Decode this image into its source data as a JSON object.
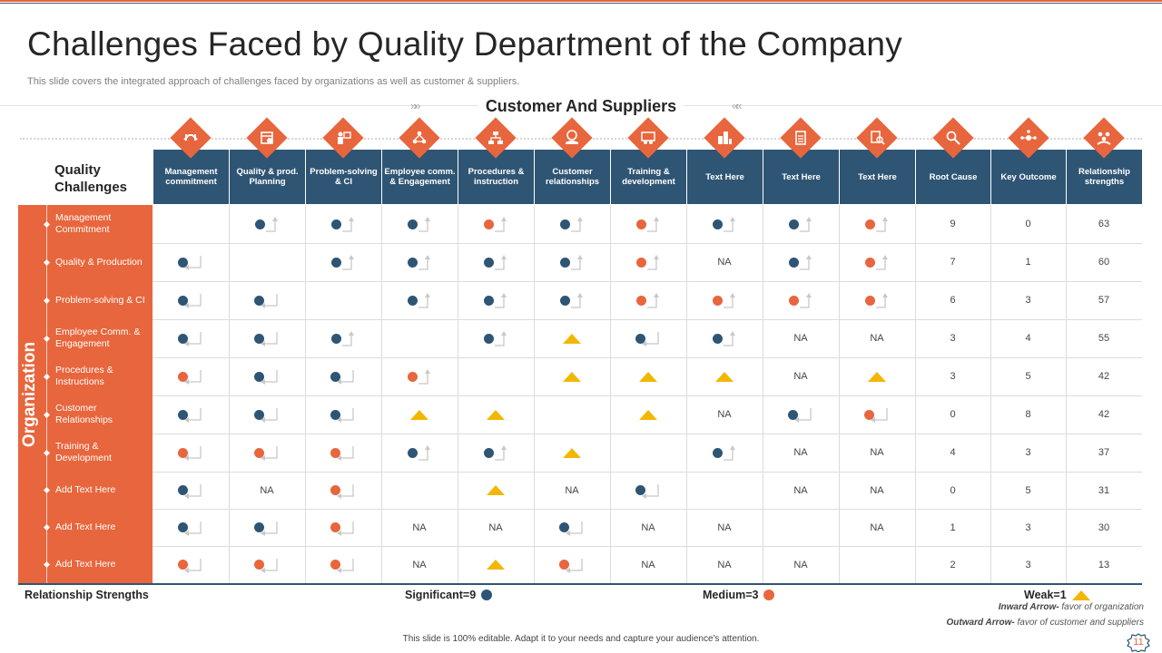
{
  "title": "Challenges Faced by Quality Department of the Company",
  "subtitle": "This slide covers the integrated approach of challenges faced by organizations as well as customer & suppliers.",
  "customer_title": "Customer And Suppliers",
  "quality_challenges": "Quality Challenges",
  "organization_label": "Organization",
  "colors": {
    "orange": "#e8663d",
    "navy": "#2f5574",
    "yellow": "#f2b705"
  },
  "columns": [
    {
      "label": "Management commitment",
      "icon": "handshake-icon"
    },
    {
      "label": "Quality & prod. Planning",
      "icon": "calendar-plan-icon"
    },
    {
      "label": "Problem-solving & CI",
      "icon": "presenter-icon"
    },
    {
      "label": "Employee comm. & Engagement",
      "icon": "team-network-icon"
    },
    {
      "label": "Procedures & instruction",
      "icon": "flowchart-icon"
    },
    {
      "label": "Customer relationships",
      "icon": "customer-hand-icon"
    },
    {
      "label": "Training & development",
      "icon": "training-board-icon"
    },
    {
      "label": "Text Here",
      "icon": "city-icon"
    },
    {
      "label": "Text Here",
      "icon": "clipboard-icon"
    },
    {
      "label": "Text Here",
      "icon": "checklist-search-icon"
    },
    {
      "label": "Root Cause",
      "icon": "analysis-icon"
    },
    {
      "label": "Key Outcome",
      "icon": "key-outcome-icon"
    },
    {
      "label": "Relationship strengths",
      "icon": "people-group-icon"
    }
  ],
  "rows": [
    {
      "label": "Management Commitment",
      "cells": [
        "",
        "B>",
        "B>",
        "B>",
        "O>",
        "B>",
        "O>",
        "B>",
        "B>",
        "O>",
        "9",
        "0",
        "63"
      ]
    },
    {
      "label": "Quality & Production",
      "cells": [
        "B<",
        "",
        "B>",
        "B>",
        "B>",
        "B>",
        "O>",
        "NA",
        "B>",
        "O>",
        "7",
        "1",
        "60"
      ]
    },
    {
      "label": "Problem-solving & CI",
      "cells": [
        "B<",
        "B<",
        "",
        "B>",
        "B>",
        "B>",
        "O>",
        "O>",
        "O>",
        "O>",
        "6",
        "3",
        "57"
      ]
    },
    {
      "label": "Employee Comm. & Engagement",
      "cells": [
        "B<",
        "B<",
        "B>",
        "",
        "B>",
        "T",
        "B<",
        "B>",
        "NA",
        "NA",
        "3",
        "4",
        "55"
      ]
    },
    {
      "label": "Procedures & Instructions",
      "cells": [
        "O<",
        "B<",
        "B<",
        "O>",
        "",
        "T",
        "T",
        "T",
        "NA",
        "T",
        "3",
        "5",
        "42"
      ]
    },
    {
      "label": "Customer Relationships",
      "cells": [
        "B<",
        "B<",
        "B<",
        "T",
        "T",
        "",
        "T",
        "NA",
        "B<",
        "O<",
        "0",
        "8",
        "42"
      ]
    },
    {
      "label": "Training & Development",
      "cells": [
        "O<",
        "O<",
        "O<",
        "B>",
        "B>",
        "T",
        "",
        "B>",
        "NA",
        "NA",
        "4",
        "3",
        "37"
      ]
    },
    {
      "label": "Add Text Here",
      "cells": [
        "B<",
        "NA",
        "O<",
        "",
        "T",
        "NA",
        "B<",
        "",
        "NA",
        "NA",
        "0",
        "5",
        "31"
      ]
    },
    {
      "label": "Add Text Here",
      "cells": [
        "B<",
        "B<",
        "O<",
        "NA",
        "NA",
        "B<",
        "NA",
        "NA",
        "",
        "NA",
        "1",
        "3",
        "30"
      ]
    },
    {
      "label": "Add Text Here",
      "cells": [
        "O<",
        "O<",
        "O<",
        "NA",
        "T",
        "O<",
        "NA",
        "NA",
        "NA",
        "",
        "2",
        "3",
        "13"
      ]
    }
  ],
  "legend": {
    "title": "Relationship Strengths",
    "significant": "Significant=9",
    "medium": "Medium=3",
    "weak": "Weak=1"
  },
  "notes": {
    "inward_bold": "Inward Arrow-",
    "inward_text": " favor of organization",
    "outward_bold": "Outward Arrow-",
    "outward_text": " favor of customer and suppliers"
  },
  "footer": "This slide is 100% editable.  Adapt it to your needs and capture your audience's attention.",
  "page_number": "11"
}
